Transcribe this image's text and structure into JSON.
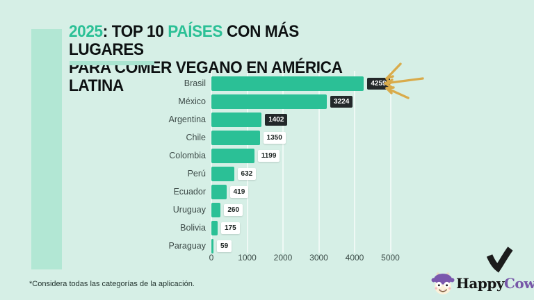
{
  "title": {
    "part1_accent": "2025",
    "part2": ": TOP 10 ",
    "part3_accent": "PAÍSES",
    "part4": " CON MÁS LUGARES",
    "line2": "PARA COMER VEGANO EN AMÉRICA LATINA"
  },
  "chart_data": {
    "type": "bar",
    "orientation": "horizontal",
    "categories": [
      "Brasil",
      "México",
      "Argentina",
      "Chile",
      "Colombia",
      "Perú",
      "Ecuador",
      "Uruguay",
      "Bolivia",
      "Paraguay"
    ],
    "values": [
      4259,
      3224,
      1402,
      1350,
      1199,
      632,
      419,
      260,
      175,
      59
    ],
    "value_label_style": [
      "dark",
      "dark",
      "dark",
      "light",
      "light",
      "light",
      "light",
      "light",
      "light",
      "light"
    ],
    "xticks": [
      0,
      1000,
      2000,
      3000,
      4000,
      5000
    ],
    "xlim": [
      0,
      5000
    ],
    "grid": true,
    "legend": "none",
    "bar_color": "#2bc096",
    "annotation": "hand-drawn arrows pointing at top value 4259"
  },
  "footnote": "*Considera todas las categorías de la aplicación.",
  "branding": {
    "happy": "Happy",
    "cow": "Cow"
  },
  "colors": {
    "background": "#d6efe6",
    "accent_green": "#2bc096",
    "accent_light": "#b2e7d4",
    "dark_chip": "#23282a",
    "arrow_yellow": "#d9ab4b",
    "brand_purple": "#7757a8"
  }
}
